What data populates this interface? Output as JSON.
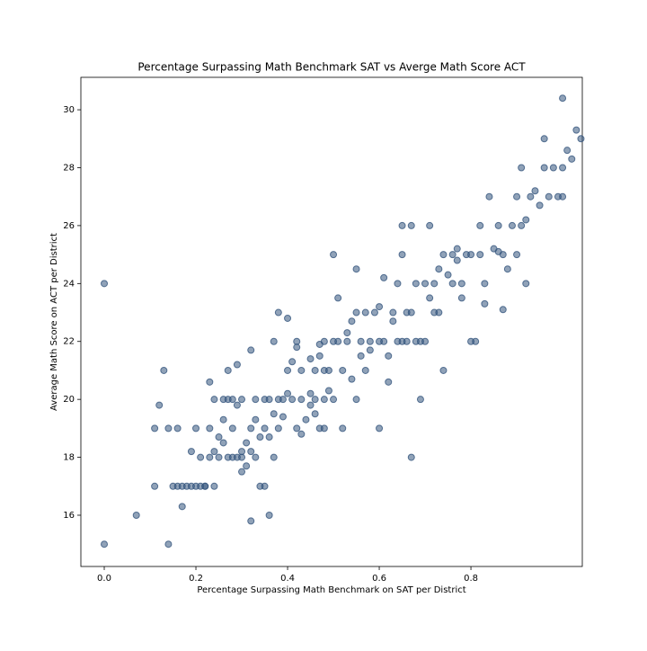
{
  "chart_data": {
    "type": "scatter",
    "title": "Percentage Surpassing Math Benchmark SAT vs Averge Math Score ACT",
    "x_label": "Percentage Surpassing Math Benchmark on SAT per District",
    "y_label": "Average Math Score on ACT per District",
    "color": "#34557d",
    "xlim": [
      -0.051,
      1.043
    ],
    "ylim": [
      14.23,
      31.12
    ],
    "xticks": [
      {
        "value": 0,
        "label": "0.0"
      },
      0.2,
      0.4,
      0.6,
      0.8
    ],
    "yticks": [
      16,
      18,
      20,
      22,
      24,
      26,
      28,
      30
    ],
    "x": [
      0,
      0,
      0.07,
      0.14,
      0.11,
      0.11,
      0.12,
      0.13,
      0.14,
      0.15,
      0.16,
      0.16,
      0.17,
      0.17,
      0.18,
      0.19,
      0.2,
      0.21,
      0.22,
      0.19,
      0.2,
      0.21,
      0.22,
      0.23,
      0.23,
      0.23,
      0.24,
      0.24,
      0.24,
      0.25,
      0.25,
      0.26,
      0.26,
      0.26,
      0.27,
      0.27,
      0.27,
      0.28,
      0.28,
      0.28,
      0.29,
      0.29,
      0.29,
      0.3,
      0.3,
      0.3,
      0.3,
      0.31,
      0.31,
      0.32,
      0.32,
      0.32,
      0.32,
      0.33,
      0.33,
      0.33,
      0.34,
      0.34,
      0.35,
      0.35,
      0.35,
      0.36,
      0.36,
      0.36,
      0.37,
      0.37,
      0.37,
      0.38,
      0.38,
      0.38,
      0.39,
      0.39,
      0.4,
      0.4,
      0.4,
      0.41,
      0.41,
      0.42,
      0.42,
      0.42,
      0.43,
      0.43,
      0.43,
      0.44,
      0.45,
      0.45,
      0.45,
      0.46,
      0.46,
      0.46,
      0.47,
      0.47,
      0.47,
      0.48,
      0.48,
      0.48,
      0.48,
      0.49,
      0.49,
      0.5,
      0.5,
      0.5,
      0.51,
      0.51,
      0.52,
      0.52,
      0.53,
      0.53,
      0.54,
      0.54,
      0.55,
      0.55,
      0.55,
      0.56,
      0.56,
      0.57,
      0.57,
      0.58,
      0.58,
      0.59,
      0.6,
      0.6,
      0.6,
      0.61,
      0.61,
      0.62,
      0.62,
      0.63,
      0.63,
      0.64,
      0.64,
      0.65,
      0.65,
      0.65,
      0.66,
      0.66,
      0.67,
      0.67,
      0.67,
      0.68,
      0.68,
      0.69,
      0.7,
      0.7,
      0.71,
      0.71,
      0.72,
      0.72,
      0.73,
      0.73,
      0.74,
      0.74,
      0.69,
      0.75,
      0.76,
      0.76,
      0.77,
      0.77,
      0.78,
      0.78,
      0.79,
      0.8,
      0.8,
      0.81,
      0.82,
      0.82,
      0.83,
      0.83,
      0.84,
      0.85,
      0.86,
      0.86,
      0.87,
      0.87,
      0.88,
      0.89,
      0.9,
      0.9,
      0.91,
      0.91,
      0.92,
      0.92,
      0.93,
      0.94,
      0.95,
      0.96,
      0.96,
      0.97,
      0.98,
      0.99,
      1.0,
      1.0,
      1.01,
      1.02,
      1.03,
      1.04,
      1.0
    ],
    "values": [
      24,
      15,
      16,
      15,
      17,
      19,
      19.8,
      21,
      19,
      17,
      17,
      19,
      17,
      16.3,
      17,
      17,
      17,
      17,
      17,
      18.2,
      19,
      18,
      17,
      18,
      19,
      20.6,
      20,
      18.2,
      17,
      18.7,
      18,
      19.3,
      18.5,
      20,
      20,
      21,
      18,
      18,
      19,
      20,
      21.2,
      19.8,
      18,
      17.5,
      18.2,
      18,
      20,
      18.5,
      17.7,
      19,
      18.2,
      15.8,
      21.7,
      19.3,
      20,
      18,
      17,
      18.7,
      17,
      20,
      19,
      20,
      18.7,
      16,
      22,
      18,
      19.5,
      19,
      20,
      23,
      19.4,
      20,
      22.8,
      20.2,
      21,
      20,
      21.3,
      19,
      22,
      21.8,
      21,
      18.8,
      20,
      19.3,
      20.2,
      21.4,
      19.8,
      21,
      20,
      19.5,
      21.5,
      19,
      21.9,
      21,
      19,
      20,
      22,
      21,
      20.3,
      25,
      20,
      22,
      23.5,
      22,
      19,
      21,
      22.3,
      22,
      20.7,
      22.7,
      23,
      20,
      24.5,
      21.5,
      22,
      23,
      21,
      22,
      21.7,
      23,
      23.2,
      19,
      22,
      22,
      24.2,
      21.5,
      20.6,
      22.7,
      23,
      24,
      22,
      25,
      22,
      26,
      23,
      22,
      23,
      26,
      18,
      22,
      24,
      22,
      24,
      22,
      23.5,
      26,
      24,
      23,
      24.5,
      23,
      21,
      25,
      20,
      24.3,
      24,
      25,
      25.2,
      24.8,
      24,
      23.5,
      25,
      22,
      25,
      22,
      26,
      25,
      24,
      23.3,
      27,
      25.2,
      26,
      25.1,
      23.1,
      25,
      24.5,
      26,
      27,
      25,
      26,
      28,
      24,
      26.2,
      27,
      27.2,
      26.7,
      28,
      29,
      27,
      28,
      27,
      28,
      27,
      28.6,
      28.3,
      29.3,
      29,
      30.4
    ]
  }
}
